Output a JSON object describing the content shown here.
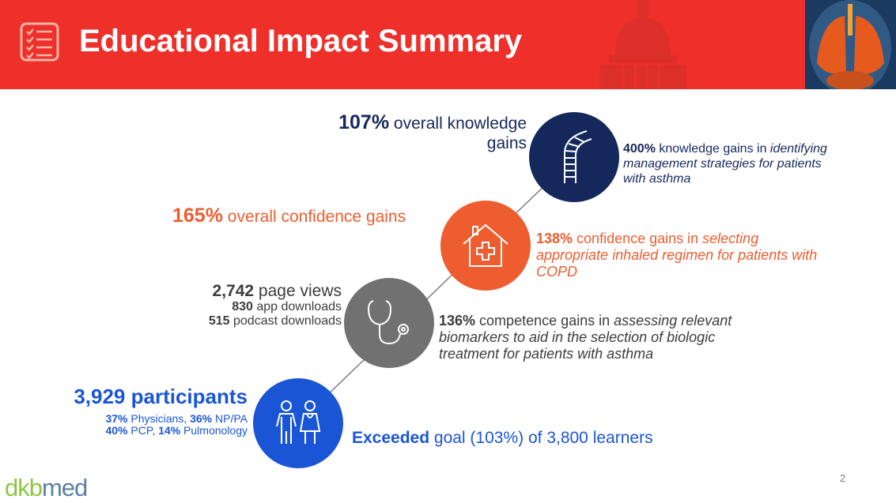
{
  "header": {
    "title": "Educational Impact Summary"
  },
  "stats": {
    "knowledge": {
      "value": "107%",
      "label_line1": " overall knowledge",
      "label_line2": "gains",
      "detail_value": "400%",
      "detail_text1": " knowledge gains in ",
      "detail_italic": [
        "identifying",
        "management strategies for patients",
        "with asthma"
      ]
    },
    "confidence": {
      "value": "165%",
      "label": " overall confidence gains",
      "detail_value": "138%",
      "detail_text1": " confidence gains in ",
      "detail_italic": [
        "selecting",
        "appropriate inhaled regimen for patients with",
        "COPD"
      ]
    },
    "engagement": {
      "page_views_value": "2,742",
      "page_views_label": " page views",
      "app_value": "830",
      "app_label": " app downloads",
      "podcast_value": "515",
      "podcast_label": " podcast downloads",
      "detail_value": "136%",
      "detail_text1": " competence gains in ",
      "detail_italic": [
        "assessing relevant",
        "biomarkers to aid in the selection of biologic",
        "treatment for patients with asthma"
      ]
    },
    "participants": {
      "value": "3,929",
      "label": " participants",
      "line1": [
        {
          "v": "37%",
          "t": " Physicians, "
        },
        {
          "v": "36%",
          "t": " NP/PA"
        }
      ],
      "line2": [
        {
          "v": "40%",
          "t": " PCP, "
        },
        {
          "v": "14%",
          "t": " Pulmonology"
        }
      ],
      "goal_bold": "Exceeded",
      "goal_text": " goal (103%) of 3,800 learners"
    }
  },
  "footer": {
    "page_number": "2",
    "logo_part1": "dkb",
    "logo_part2": "med"
  },
  "colors": {
    "red": "#ee2f2a",
    "navy": "#15285c",
    "orange": "#ee5d2f",
    "gray": "#717171",
    "blue": "#1a55d6"
  },
  "icons": [
    "checklist-icon",
    "capitol-dome-icon",
    "lungs-anatomy-image",
    "dna-ladder-icon",
    "house-medical-cross-icon",
    "stethoscope-icon",
    "doctors-icon"
  ]
}
